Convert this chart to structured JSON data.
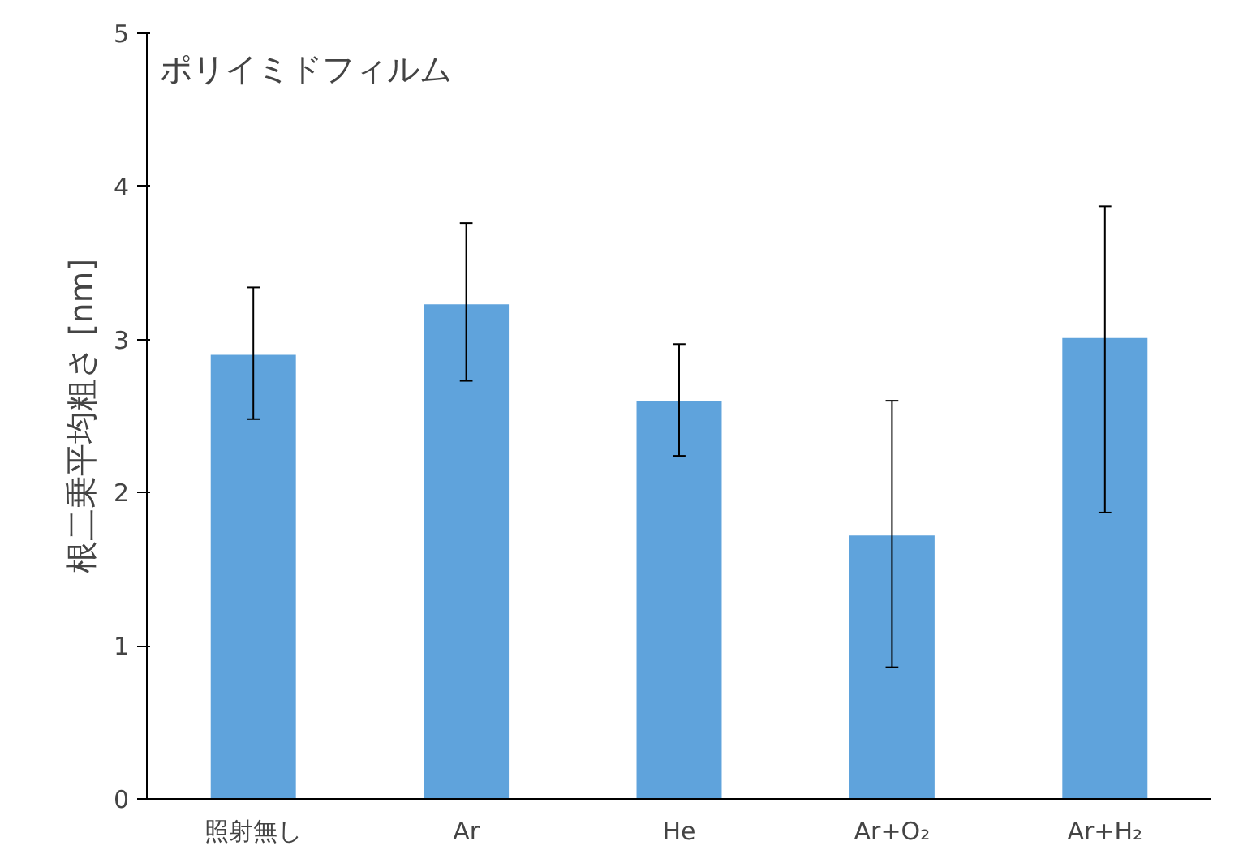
{
  "chart_data": {
    "type": "bar",
    "title": "ポリイミドフィルム",
    "ylabel": "根二乗平均粗さ [nm]",
    "categories": [
      "照射無し",
      "Ar",
      "He",
      "Ar+O₂",
      "Ar+H₂"
    ],
    "values": [
      2.9,
      3.23,
      2.6,
      1.72,
      3.01
    ],
    "errors": [
      [
        2.48,
        3.34
      ],
      [
        2.73,
        3.76
      ],
      [
        2.24,
        2.97
      ],
      [
        0.86,
        2.6
      ],
      [
        1.87,
        3.87
      ]
    ],
    "color": "#5fa3dc",
    "ylim": [
      0,
      5
    ],
    "yticks": [
      0,
      1,
      2,
      3,
      4,
      5
    ],
    "grid": false
  }
}
